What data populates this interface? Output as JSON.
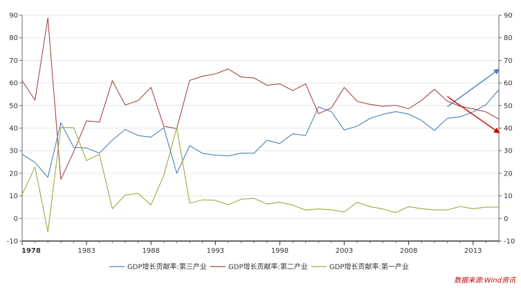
{
  "chart_data": {
    "type": "line",
    "x": [
      1978,
      1979,
      1980,
      1981,
      1982,
      1983,
      1984,
      1985,
      1986,
      1987,
      1988,
      1989,
      1990,
      1991,
      1992,
      1993,
      1994,
      1995,
      1996,
      1997,
      1998,
      1999,
      2000,
      2001,
      2002,
      2003,
      2004,
      2005,
      2006,
      2007,
      2008,
      2009,
      2010,
      2011,
      2012,
      2013,
      2014,
      2015
    ],
    "x_ticks": [
      1978,
      1983,
      1988,
      1993,
      1998,
      2003,
      2008,
      2013
    ],
    "ylim": [
      -10,
      90
    ],
    "y_ticks": [
      -10,
      0,
      10,
      20,
      30,
      40,
      50,
      60,
      70,
      80,
      90
    ],
    "grid": true,
    "legend_position": "bottom",
    "series": [
      {
        "name": "GDP增长贡献率:第三产业",
        "color": "#4a7fb5",
        "values": [
          28.4,
          24.8,
          18.2,
          42.4,
          31.5,
          31.2,
          28.9,
          34.7,
          39.4,
          36.7,
          36.0,
          40.2,
          20.0,
          32.2,
          28.8,
          28.0,
          27.7,
          28.9,
          28.9,
          34.6,
          33.2,
          37.5,
          36.7,
          49.4,
          47.3,
          39.1,
          40.9,
          44.3,
          46.1,
          47.3,
          46.2,
          43.4,
          39.0,
          44.3,
          45.0,
          47.2,
          50.4,
          57.0
        ]
      },
      {
        "name": "GDP增长贡献率:第二产业",
        "color": "#a64444",
        "values": [
          61.0,
          52.4,
          88.8,
          17.3,
          29.5,
          43.2,
          42.7,
          61.0,
          50.2,
          52.2,
          58.0,
          40.8,
          39.8,
          61.1,
          63.0,
          64.0,
          66.2,
          62.6,
          62.2,
          59.0,
          59.6,
          56.6,
          59.6,
          46.4,
          48.9,
          58.0,
          51.9,
          50.5,
          49.7,
          50.1,
          48.6,
          52.3,
          57.2,
          51.9,
          49.7,
          48.5,
          47.2,
          44.0
        ]
      },
      {
        "name": "GDP增长贡献率:第一产业",
        "color": "#9aaa3c",
        "values": [
          10.6,
          22.8,
          -6.0,
          40.3,
          40.2,
          25.6,
          28.4,
          4.3,
          10.4,
          11.1,
          6.0,
          19.1,
          40.2,
          6.8,
          8.2,
          8.0,
          6.1,
          8.5,
          8.9,
          6.4,
          7.2,
          5.9,
          3.7,
          4.2,
          3.8,
          2.9,
          7.2,
          5.2,
          4.2,
          2.6,
          5.2,
          4.3,
          3.8,
          3.8,
          5.3,
          4.3,
          5.0,
          5.0
        ]
      }
    ],
    "annotations": [
      {
        "type": "arrow",
        "color": "#4a7fb5",
        "from": [
          2011.0,
          49.5
        ],
        "to": [
          2015.0,
          66.0
        ]
      },
      {
        "type": "arrow",
        "color": "#c00000",
        "from": [
          2011.0,
          54.0
        ],
        "to": [
          2015.0,
          38.0
        ]
      }
    ]
  },
  "source_text": "数据来源:Wind资讯"
}
